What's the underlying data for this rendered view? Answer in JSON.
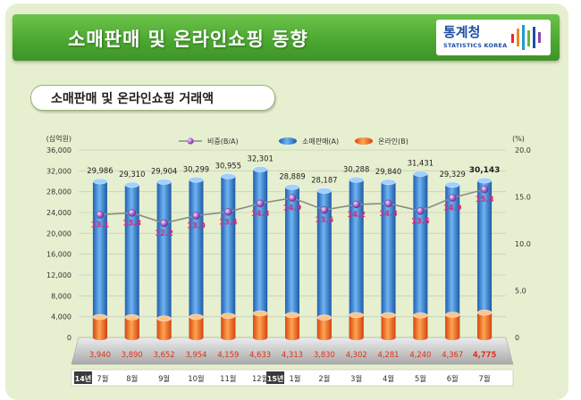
{
  "header": {
    "title": "소매판매 및 온라인쇼핑 동향",
    "logo_kr": "통계청",
    "logo_en": "STATISTICS KOREA"
  },
  "subtitle": "소매판매 및 온라인쇼핑 거래액",
  "chart_data": {
    "type": "bar",
    "title": "소매판매 및 온라인쇼핑 거래액",
    "left_unit": "(십억원)",
    "right_unit": "(%)",
    "left_ticks": [
      "36,000",
      "32,000",
      "28,000",
      "24,000",
      "20,000",
      "16,000",
      "12,000",
      "8,000",
      "4,000",
      "0"
    ],
    "right_ticks": [
      "20.0",
      "15.0",
      "10.0",
      "5.0",
      "0"
    ],
    "ylim_left": [
      0,
      36000
    ],
    "ylim_right": [
      0,
      20
    ],
    "legend": [
      "비중(B/A)",
      "소매판매(A)",
      "온라인(B)"
    ],
    "legend_position": "top",
    "categories": [
      "7월",
      "8월",
      "9월",
      "10월",
      "11월",
      "12월",
      "1월",
      "2월",
      "3월",
      "4월",
      "5월",
      "6월",
      "7월"
    ],
    "year_markers": [
      {
        "index": 0,
        "label": "14년"
      },
      {
        "index": 6,
        "label": "15년"
      }
    ],
    "series": [
      {
        "name": "소매판매(A)",
        "axis": "left",
        "values": [
          29986,
          29310,
          29904,
          30299,
          30955,
          32301,
          28889,
          28187,
          30288,
          29840,
          31431,
          29329,
          30143
        ],
        "labels": [
          "29,986",
          "29,310",
          "29,904",
          "30,299",
          "30,955",
          "32,301",
          "28,889",
          "28,187",
          "30,288",
          "29,840",
          "31,431",
          "29,329",
          "30,143"
        ]
      },
      {
        "name": "온라인(B)",
        "axis": "left",
        "values": [
          3940,
          3890,
          3652,
          3954,
          4159,
          4633,
          4313,
          3830,
          4302,
          4281,
          4240,
          4367,
          4775
        ],
        "labels": [
          "3,940",
          "3,890",
          "3,652",
          "3,954",
          "4,159",
          "4,633",
          "4,313",
          "3,830",
          "4,302",
          "4,281",
          "4,240",
          "4,367",
          "4,775"
        ]
      },
      {
        "name": "비중(B/A)",
        "axis": "right",
        "values": [
          13.1,
          13.3,
          12.2,
          13.0,
          13.4,
          14.3,
          14.9,
          13.6,
          14.2,
          14.3,
          13.5,
          14.9,
          15.8
        ],
        "labels": [
          "13.1",
          "13.3",
          "12.2",
          "13.0",
          "13.4",
          "14.3",
          "14.9",
          "13.6",
          "14.2",
          "14.3",
          "13.5",
          "14.9",
          "15.8"
        ]
      }
    ],
    "colors": {
      "retail": "#3f86d6",
      "online": "#f26b1f",
      "ratio_line": "#8a8a8a",
      "ratio_marker": "#9b4fb8",
      "ratio_label": "#d8297a",
      "online_label": "#e0301e"
    },
    "grid": true
  }
}
